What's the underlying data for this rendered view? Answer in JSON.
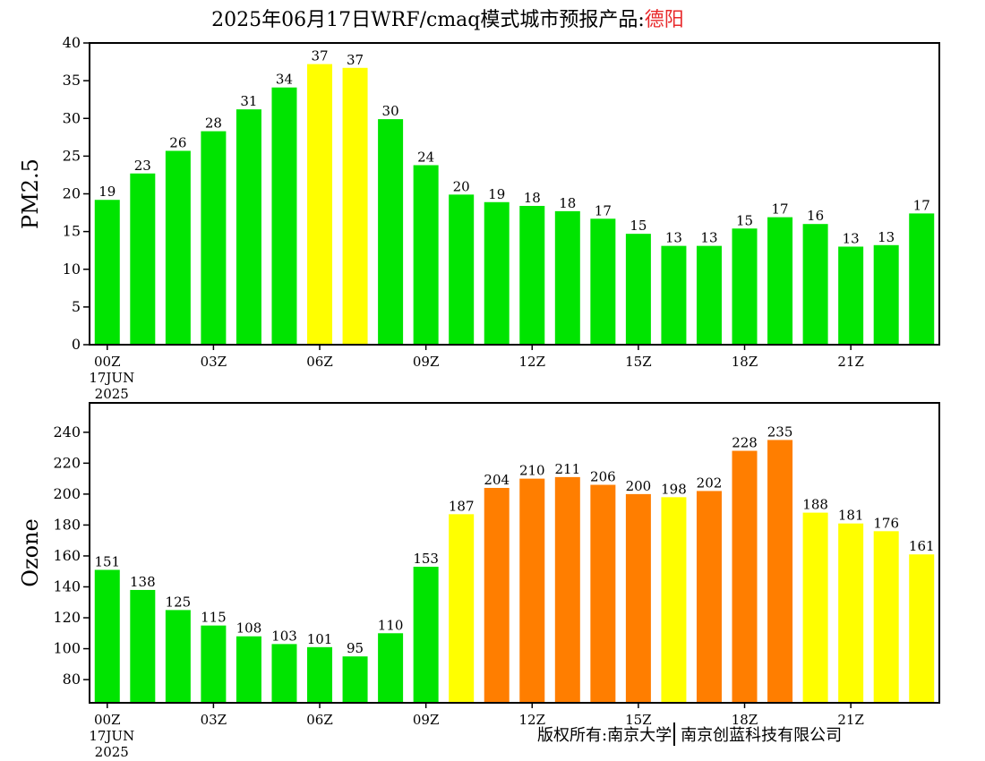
{
  "title": {
    "prefix": "2025年06月17日WRF/cmaq模式城市预报产品:",
    "city": "德阳"
  },
  "footer": {
    "left": "版权所有:南京大学",
    "right": "南京创蓝科技有限公司"
  },
  "colors": {
    "good": "#00e400",
    "moderate": "#ffff00",
    "sensitive": "#ff7e00"
  },
  "chart_data": [
    {
      "type": "bar",
      "ylabel": "PM2.5",
      "ylim": [
        0,
        40
      ],
      "yticks": [
        0,
        5,
        10,
        15,
        20,
        25,
        30,
        35,
        40
      ],
      "x_ticks": [
        "00Z",
        "03Z",
        "06Z",
        "09Z",
        "12Z",
        "15Z",
        "18Z",
        "21Z"
      ],
      "x_tick_hours": [
        0,
        3,
        6,
        9,
        12,
        15,
        18,
        21
      ],
      "date_label": [
        "17JUN",
        "2025"
      ],
      "hours": [
        0,
        1,
        2,
        3,
        4,
        5,
        6,
        7,
        8,
        9,
        10,
        11,
        12,
        13,
        14,
        15,
        16,
        17,
        18,
        19,
        20,
        21,
        22,
        23
      ],
      "values": [
        19.2,
        22.7,
        25.7,
        28.3,
        31.2,
        34.1,
        37.2,
        36.7,
        29.9,
        23.8,
        19.9,
        18.9,
        18.4,
        17.7,
        16.7,
        14.7,
        13.1,
        13.1,
        15.4,
        16.9,
        16.0,
        13.0,
        13.2,
        17.4
      ],
      "labels": [
        "19",
        "23",
        "26",
        "28",
        "31",
        "34",
        "37",
        "37",
        "30",
        "24",
        "20",
        "19",
        "18",
        "18",
        "17",
        "15",
        "13",
        "13",
        "15",
        "17",
        "16",
        "13",
        "13",
        "17"
      ],
      "levels": [
        "good",
        "good",
        "good",
        "good",
        "good",
        "good",
        "moderate",
        "moderate",
        "good",
        "good",
        "good",
        "good",
        "good",
        "good",
        "good",
        "good",
        "good",
        "good",
        "good",
        "good",
        "good",
        "good",
        "good",
        "good"
      ]
    },
    {
      "type": "bar",
      "ylabel": "Ozone",
      "ylim": [
        65,
        259
      ],
      "yticks": [
        80,
        100,
        120,
        140,
        160,
        180,
        200,
        220,
        240
      ],
      "x_ticks": [
        "00Z",
        "03Z",
        "06Z",
        "09Z",
        "12Z",
        "15Z",
        "18Z",
        "21Z"
      ],
      "x_tick_hours": [
        0,
        3,
        6,
        9,
        12,
        15,
        18,
        21
      ],
      "date_label": [
        "17JUN",
        "2025"
      ],
      "hours": [
        0,
        1,
        2,
        3,
        4,
        5,
        6,
        7,
        8,
        9,
        10,
        11,
        12,
        13,
        14,
        15,
        16,
        17,
        18,
        19,
        20,
        21,
        22,
        23
      ],
      "values": [
        151,
        138,
        125,
        115,
        108,
        103,
        101,
        95,
        110,
        153,
        187,
        204,
        210,
        211,
        206,
        200,
        198,
        202,
        228,
        235,
        188,
        181,
        176,
        161
      ],
      "labels": [
        "151",
        "138",
        "125",
        "115",
        "108",
        "103",
        "101",
        "95",
        "110",
        "153",
        "187",
        "204",
        "210",
        "211",
        "206",
        "200",
        "198",
        "202",
        "228",
        "235",
        "188",
        "181",
        "176",
        "161"
      ],
      "levels": [
        "good",
        "good",
        "good",
        "good",
        "good",
        "good",
        "good",
        "good",
        "good",
        "good",
        "moderate",
        "sensitive",
        "sensitive",
        "sensitive",
        "sensitive",
        "sensitive",
        "moderate",
        "sensitive",
        "sensitive",
        "sensitive",
        "moderate",
        "moderate",
        "moderate",
        "moderate"
      ]
    }
  ]
}
